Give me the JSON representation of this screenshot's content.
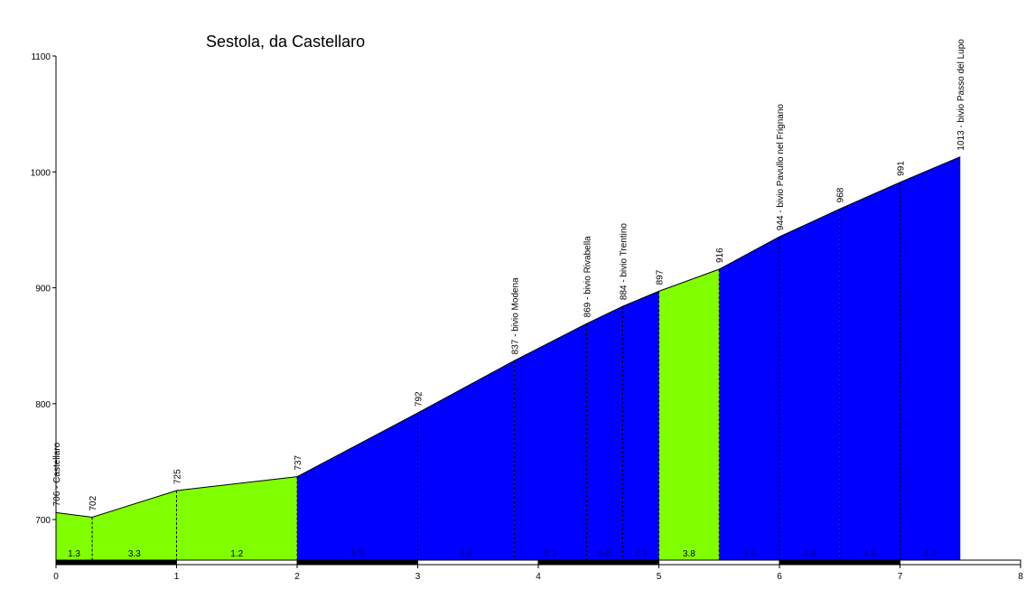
{
  "chart_data": {
    "type": "area",
    "title": "Sestola, da Castellaro",
    "xlabel": "",
    "ylabel": "",
    "xlim": [
      0,
      8
    ],
    "ylim": [
      665,
      1100
    ],
    "x_ticks": [
      0,
      1,
      2,
      3,
      4,
      5,
      6,
      7,
      8
    ],
    "y_ticks": [
      700,
      800,
      900,
      1000,
      1100
    ],
    "grid": false,
    "profile": [
      {
        "x": 0.0,
        "y": 706
      },
      {
        "x": 0.3,
        "y": 702
      },
      {
        "x": 1.0,
        "y": 725
      },
      {
        "x": 2.0,
        "y": 737
      },
      {
        "x": 3.0,
        "y": 792
      },
      {
        "x": 3.8,
        "y": 837
      },
      {
        "x": 4.4,
        "y": 869
      },
      {
        "x": 4.7,
        "y": 884
      },
      {
        "x": 5.0,
        "y": 897
      },
      {
        "x": 5.5,
        "y": 916
      },
      {
        "x": 6.0,
        "y": 944
      },
      {
        "x": 6.5,
        "y": 968
      },
      {
        "x": 7.0,
        "y": 991
      },
      {
        "x": 7.5,
        "y": 1013
      }
    ],
    "segments": [
      {
        "from": 0.0,
        "to": 0.3,
        "gradient": "1.3",
        "color": "#80ff00"
      },
      {
        "from": 0.3,
        "to": 1.0,
        "gradient": "3.3",
        "color": "#80ff00"
      },
      {
        "from": 1.0,
        "to": 2.0,
        "gradient": "1.2",
        "color": "#80ff00"
      },
      {
        "from": 2.0,
        "to": 3.0,
        "gradient": "5.5",
        "color": "#0000ff"
      },
      {
        "from": 3.0,
        "to": 3.8,
        "gradient": "5.6",
        "color": "#0000ff"
      },
      {
        "from": 3.8,
        "to": 4.4,
        "gradient": "5.3",
        "color": "#0000ff"
      },
      {
        "from": 4.4,
        "to": 4.7,
        "gradient": "5.0",
        "color": "#0000ff"
      },
      {
        "from": 4.7,
        "to": 5.0,
        "gradient": "4.3",
        "color": "#0000ff"
      },
      {
        "from": 5.0,
        "to": 5.5,
        "gradient": "3.8",
        "color": "#80ff00"
      },
      {
        "from": 5.5,
        "to": 6.0,
        "gradient": "5.6",
        "color": "#0000ff"
      },
      {
        "from": 6.0,
        "to": 6.5,
        "gradient": "4.8",
        "color": "#0000ff"
      },
      {
        "from": 6.5,
        "to": 7.0,
        "gradient": "4.6",
        "color": "#0000ff"
      },
      {
        "from": 7.0,
        "to": 7.5,
        "gradient": "4.4",
        "color": "#0000ff"
      }
    ],
    "annotations": [
      {
        "x": 0.0,
        "y": 706,
        "label": "706 - Castellaro"
      },
      {
        "x": 0.3,
        "y": 702,
        "label": "702"
      },
      {
        "x": 1.0,
        "y": 725,
        "label": "725"
      },
      {
        "x": 2.0,
        "y": 737,
        "label": "737"
      },
      {
        "x": 3.0,
        "y": 792,
        "label": "792"
      },
      {
        "x": 3.8,
        "y": 837,
        "label": "837 - bivio Modena"
      },
      {
        "x": 4.4,
        "y": 869,
        "label": "869 - bivio Rivabella"
      },
      {
        "x": 4.7,
        "y": 884,
        "label": "884 - bivio Trentino"
      },
      {
        "x": 5.0,
        "y": 897,
        "label": "897"
      },
      {
        "x": 5.5,
        "y": 916,
        "label": "916"
      },
      {
        "x": 6.0,
        "y": 944,
        "label": "944 - bivio Pavullo nel Frignano"
      },
      {
        "x": 6.5,
        "y": 968,
        "label": "968"
      },
      {
        "x": 7.0,
        "y": 991,
        "label": "991"
      },
      {
        "x": 7.5,
        "y": 1013,
        "label": "1013 - bivio Passo del Lupo"
      }
    ],
    "colors": {
      "steep": "#0000ff",
      "gentle": "#80ff00",
      "axis": "#000000",
      "gradient_label_on_blue": "#000080",
      "gradient_label_on_green": "#000000"
    }
  }
}
